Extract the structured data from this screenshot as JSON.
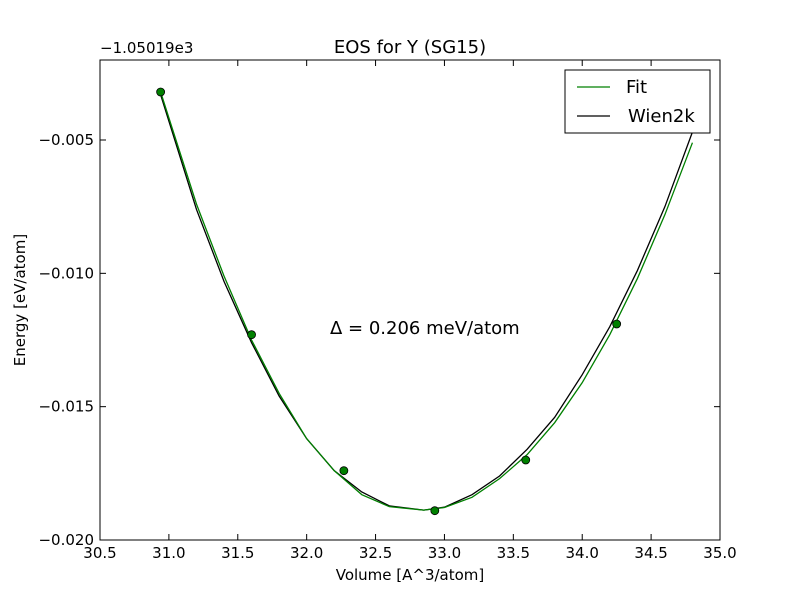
{
  "chart_data": {
    "type": "line",
    "title": "EOS for Y (SG15)",
    "xlabel": "Volume [A^3/atom]",
    "ylabel": "Energy [eV/atom]",
    "y_offset_label": "−1.05019e3",
    "annotation": "Δ = 0.206 meV/atom",
    "xlim": [
      30.5,
      35.0
    ],
    "ylim": [
      -0.02,
      -0.002
    ],
    "x_ticks": [
      30.5,
      31.0,
      31.5,
      32.0,
      32.5,
      33.0,
      33.5,
      34.0,
      34.5,
      35.0
    ],
    "x_tick_labels": [
      "30.5",
      "31.0",
      "31.5",
      "32.0",
      "32.5",
      "33.0",
      "33.5",
      "34.0",
      "34.5",
      "35.0"
    ],
    "y_ticks": [
      -0.02,
      -0.015,
      -0.01,
      -0.005
    ],
    "y_tick_labels": [
      "−0.020",
      "−0.015",
      "−0.010",
      "−0.005"
    ],
    "legend_position": "top-right",
    "grid": false,
    "series": [
      {
        "name": "Fit",
        "color": "#008000",
        "kind": "curve",
        "x": [
          30.94,
          31.2,
          31.4,
          31.6,
          31.8,
          32.0,
          32.2,
          32.4,
          32.6,
          32.85,
          33.0,
          33.2,
          33.4,
          33.6,
          33.8,
          34.0,
          34.2,
          34.4,
          34.6,
          34.8
        ],
        "y": [
          -0.0032,
          -0.0074,
          -0.0101,
          -0.0125,
          -0.0145,
          -0.0162,
          -0.0174,
          -0.0183,
          -0.01875,
          -0.01888,
          -0.01878,
          -0.0184,
          -0.0177,
          -0.0168,
          -0.0156,
          -0.0141,
          -0.0123,
          -0.0102,
          -0.0078,
          -0.0051
        ]
      },
      {
        "name": "Wien2k",
        "color": "#000000",
        "kind": "curve",
        "x": [
          30.94,
          31.2,
          31.4,
          31.6,
          31.8,
          32.0,
          32.2,
          32.4,
          32.6,
          32.85,
          33.0,
          33.2,
          33.4,
          33.6,
          33.8,
          34.0,
          34.2,
          34.4,
          34.6,
          34.8
        ],
        "y": [
          -0.0033,
          -0.0076,
          -0.0103,
          -0.0126,
          -0.0146,
          -0.0162,
          -0.0174,
          -0.0182,
          -0.01872,
          -0.01888,
          -0.01877,
          -0.0183,
          -0.0176,
          -0.0166,
          -0.0154,
          -0.0138,
          -0.012,
          -0.0099,
          -0.0075,
          -0.0047
        ]
      },
      {
        "name": "",
        "color": "#008000",
        "kind": "points",
        "x": [
          30.94,
          31.6,
          32.27,
          32.93,
          33.59,
          34.25
        ],
        "y": [
          -0.0032,
          -0.0123,
          -0.0174,
          -0.0189,
          -0.017,
          -0.0119
        ]
      }
    ]
  }
}
